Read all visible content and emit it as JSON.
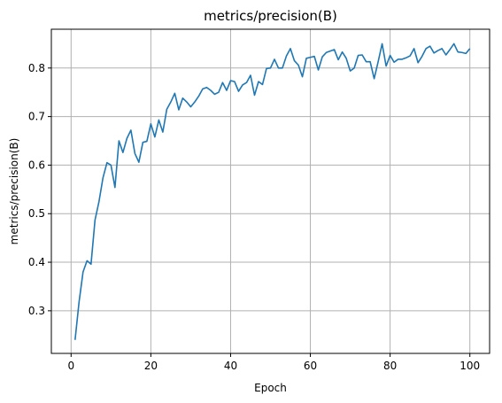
{
  "chart_data": {
    "type": "line",
    "title": "metrics/precision(B)",
    "xlabel": "Epoch",
    "ylabel": "metrics/precision(B)",
    "xlim": [
      -4.95,
      104.95
    ],
    "ylim": [
      0.2122,
      0.8799
    ],
    "xticks": [
      0,
      20,
      40,
      60,
      80,
      100
    ],
    "yticks": [
      0.3,
      0.4,
      0.5,
      0.6,
      0.7,
      0.8
    ],
    "xtick_labels": [
      "0",
      "20",
      "40",
      "60",
      "80",
      "100"
    ],
    "ytick_labels": [
      "0.3",
      "0.4",
      "0.5",
      "0.6",
      "0.7",
      "0.8"
    ],
    "grid": true,
    "color": "#1f77b4",
    "series": [
      {
        "x": [
          1,
          2,
          3,
          4,
          5,
          6,
          7,
          8,
          9,
          10,
          11,
          12,
          13,
          14,
          15,
          16,
          17,
          18,
          19,
          20,
          21,
          22,
          23,
          24,
          25,
          26,
          27,
          28,
          29,
          30,
          31,
          32,
          33,
          34,
          35,
          36,
          37,
          38,
          39,
          40,
          41,
          42,
          43,
          44,
          45,
          46,
          47,
          48,
          49,
          50,
          51,
          52,
          53,
          54,
          55,
          56,
          57,
          58,
          59,
          60,
          61,
          62,
          63,
          64,
          65,
          66,
          67,
          68,
          69,
          70,
          71,
          72,
          73,
          74,
          75,
          76,
          77,
          78,
          79,
          80,
          81,
          82,
          83,
          84,
          85,
          86,
          87,
          88,
          89,
          90,
          91,
          92,
          93,
          94,
          95,
          96,
          97,
          98,
          99,
          100
        ],
        "values": [
          0.24,
          0.318,
          0.38,
          0.403,
          0.396,
          0.487,
          0.525,
          0.574,
          0.605,
          0.6,
          0.554,
          0.65,
          0.626,
          0.655,
          0.672,
          0.624,
          0.606,
          0.647,
          0.649,
          0.685,
          0.658,
          0.693,
          0.668,
          0.715,
          0.73,
          0.748,
          0.714,
          0.738,
          0.73,
          0.72,
          0.73,
          0.742,
          0.757,
          0.76,
          0.754,
          0.746,
          0.75,
          0.77,
          0.754,
          0.774,
          0.772,
          0.752,
          0.765,
          0.77,
          0.785,
          0.744,
          0.772,
          0.766,
          0.799,
          0.8,
          0.818,
          0.8,
          0.8,
          0.825,
          0.84,
          0.815,
          0.806,
          0.782,
          0.82,
          0.822,
          0.824,
          0.796,
          0.823,
          0.832,
          0.835,
          0.838,
          0.817,
          0.833,
          0.82,
          0.794,
          0.8,
          0.826,
          0.827,
          0.813,
          0.813,
          0.778,
          0.813,
          0.85,
          0.804,
          0.826,
          0.812,
          0.818,
          0.818,
          0.821,
          0.825,
          0.84,
          0.811,
          0.824,
          0.84,
          0.845,
          0.831,
          0.836,
          0.84,
          0.827,
          0.838,
          0.85,
          0.833,
          0.832,
          0.83,
          0.84
        ]
      }
    ]
  }
}
